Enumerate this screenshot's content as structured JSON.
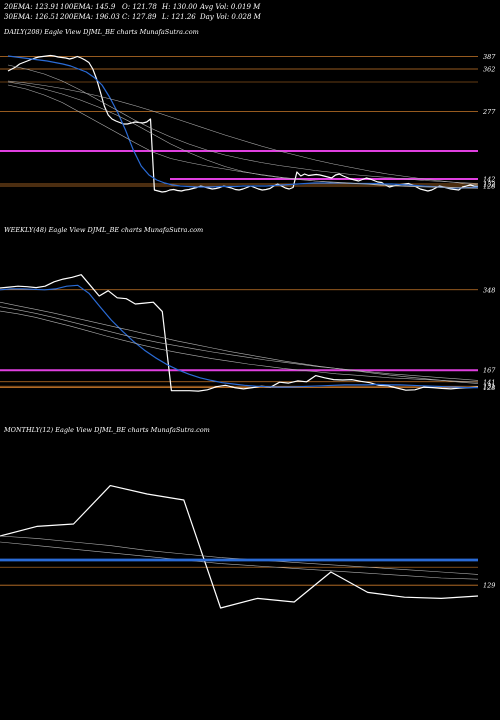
{
  "header": {
    "ema20": "20EMA: 123.91",
    "ema100": "100EMA: 145.9",
    "open": "O: 121.78",
    "high": "H: 130.00",
    "avg_vol": "Avg Vol: 0.019 M",
    "ema30": "30EMA: 126.51",
    "ema200": "200EMA: 196.03",
    "close": "C: 127.89",
    "low": "L: 121.26",
    "day_vol": "Day Vol: 0.028 M"
  },
  "colors": {
    "background": "#000000",
    "price": "#ffffff",
    "ema_blue": "#2a6bd6",
    "ma_lines": "#b0b0b0",
    "magenta": "#e040e0",
    "orange": "#c8782a"
  },
  "chart_data": [
    {
      "type": "line",
      "title": "DAILY(208) Eagle   View  DJML_BE charts MunafaSutra.com",
      "ylim": [
        100,
        420
      ],
      "level_labels": [
        "387",
        "362",
        "277",
        "142",
        "132",
        "128"
      ],
      "levels": [
        387,
        362,
        336,
        277,
        198,
        142,
        132,
        128
      ],
      "series": [
        {
          "values": [
            358,
            362,
            366,
            372,
            375,
            378,
            381,
            384,
            386,
            387,
            388,
            389,
            388,
            386,
            385,
            384,
            382,
            384,
            387,
            384,
            380,
            375,
            362,
            342,
            315,
            288,
            270,
            262,
            258,
            255,
            252,
            252,
            254,
            256,
            255,
            254,
            256,
            262,
            120,
            118,
            116,
            117,
            120,
            121,
            119,
            118,
            120,
            121,
            123,
            125,
            128,
            126,
            124,
            122,
            123,
            125,
            128,
            126,
            124,
            121,
            120,
            122,
            125,
            128,
            125,
            122,
            120,
            121,
            123,
            128,
            132,
            128,
            124,
            122,
            125,
            156,
            148,
            152,
            149,
            150,
            151,
            150,
            148,
            146,
            144,
            150,
            152,
            148,
            145,
            142,
            140,
            138,
            141,
            144,
            142,
            139,
            136,
            135,
            130,
            126,
            128,
            130,
            131,
            132,
            133,
            130,
            126,
            122,
            120,
            118,
            120,
            124,
            128,
            126,
            124,
            122,
            121,
            120,
            126,
            128,
            130,
            128,
            127
          ]
        },
        {
          "values": [
            388,
            386,
            384,
            382,
            380,
            378,
            375,
            372,
            368,
            362,
            356,
            345,
            330,
            305,
            275,
            240,
            200,
            168,
            150,
            140,
            134,
            130,
            128,
            127,
            126,
            126,
            126,
            127,
            127,
            127,
            128,
            128,
            128,
            128,
            129,
            130,
            131,
            132,
            133,
            134,
            134,
            134,
            134,
            134,
            133,
            133,
            133,
            133,
            132,
            132,
            131,
            130,
            129,
            128,
            127,
            126,
            125,
            124,
            124,
            125,
            126
          ]
        },
        {
          "values": [
            330,
            322,
            310,
            295,
            275,
            255,
            235,
            215,
            196,
            183,
            175,
            168,
            162,
            156,
            151,
            146,
            142,
            138,
            135,
            133,
            131,
            129,
            127,
            126,
            125,
            124,
            123
          ]
        },
        {
          "values": [
            336,
            330,
            322,
            312,
            300,
            286,
            270,
            252,
            232,
            212,
            195,
            180,
            167,
            157,
            150,
            145,
            141,
            138,
            136,
            134,
            132,
            130,
            128,
            127,
            126,
            125,
            124
          ]
        },
        {
          "values": [
            370,
            362,
            352,
            338,
            320,
            300,
            280,
            260,
            242,
            226,
            212,
            200,
            190,
            182,
            175,
            169,
            164,
            159,
            155,
            151,
            148,
            145,
            142,
            139,
            137,
            135,
            133
          ]
        },
        {
          "values": [
            338,
            334,
            329,
            323,
            316,
            308,
            299,
            289,
            278,
            266,
            254,
            242,
            230,
            219,
            208,
            198,
            189,
            180,
            172,
            165,
            158,
            152,
            147,
            142,
            138,
            134,
            130
          ]
        }
      ]
    },
    {
      "type": "line",
      "title": "WEEKLY(48) Eagle   View  DJML_BE charts MunafaSutra.com",
      "ylim": [
        100,
        460
      ],
      "level_labels": [
        "348",
        "167",
        "141",
        "131",
        "128"
      ],
      "levels": [
        348,
        167,
        141,
        131,
        128
      ],
      "series": [
        {
          "values": [
            352,
            354,
            356,
            355,
            353,
            356,
            366,
            372,
            376,
            382,
            358,
            334,
            346,
            330,
            328,
            316,
            318,
            320,
            299,
            121,
            121,
            121,
            120,
            123,
            130,
            133,
            128,
            125,
            128,
            131,
            129,
            140,
            138,
            143,
            141,
            155,
            150,
            146,
            145,
            146,
            142,
            139,
            133,
            132,
            127,
            122,
            123,
            129,
            128,
            126,
            125,
            127,
            128,
            129
          ]
        },
        {
          "values": [
            348,
            350,
            350,
            349,
            348,
            350,
            356,
            358,
            340,
            310,
            280,
            255,
            232,
            212,
            195,
            180,
            168,
            158,
            150,
            144,
            139,
            136,
            133,
            131,
            130,
            129,
            129,
            130,
            131,
            132,
            133,
            134,
            134,
            134,
            135,
            134,
            134,
            133,
            132,
            131,
            130,
            129,
            128,
            128
          ]
        },
        {
          "values": [
            300,
            294,
            286,
            276,
            266,
            255,
            244,
            234,
            224,
            215,
            207,
            200,
            193,
            187,
            181,
            176,
            171,
            167,
            163,
            159,
            156,
            153,
            150,
            148,
            146,
            144,
            142,
            140
          ]
        },
        {
          "values": [
            310,
            303,
            295,
            286,
            276,
            266,
            256,
            246,
            237,
            229,
            222,
            215,
            208,
            202,
            196,
            190,
            185,
            180,
            175,
            171,
            167,
            163,
            159,
            156,
            153,
            150,
            147,
            144
          ]
        },
        {
          "values": [
            320,
            312,
            304,
            296,
            287,
            278,
            269,
            260,
            251,
            242,
            233,
            225,
            217,
            209,
            202,
            195,
            188,
            182,
            176,
            171,
            166,
            161,
            156,
            152,
            148,
            144,
            140,
            137
          ]
        }
      ]
    },
    {
      "type": "line",
      "title": "MONTHLY(12) Eagle   View  DJML_BE charts MunafaSutra.com",
      "ylim": [
        100,
        250
      ],
      "level_labels": [
        "129"
      ],
      "levels": [
        150,
        144,
        129
      ],
      "series": [
        {
          "values": [
            170,
            178,
            180,
            212,
            205,
            200,
            110,
            118,
            115,
            140,
            123,
            119,
            118,
            120
          ]
        },
        {
          "values": [
            170,
            168,
            165,
            162,
            158,
            155,
            152,
            150,
            148,
            146,
            144,
            142,
            140,
            138
          ]
        },
        {
          "values": [
            165,
            162,
            159,
            156,
            153,
            150,
            147,
            145,
            143,
            141,
            139,
            137,
            135,
            134
          ]
        },
        {
          "values": [
            150,
            150,
            150,
            150,
            150,
            150,
            150,
            150,
            150,
            150,
            150,
            150,
            150,
            150
          ]
        }
      ]
    }
  ]
}
